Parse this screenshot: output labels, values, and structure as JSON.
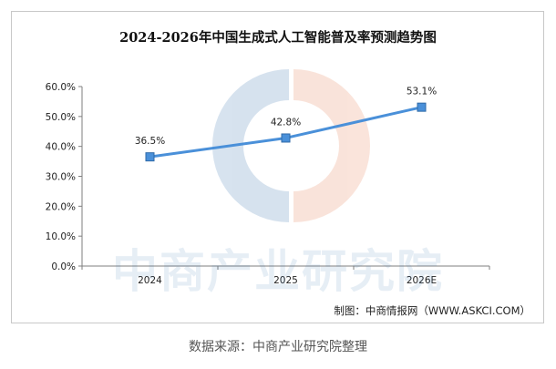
{
  "chart_data": {
    "type": "line",
    "title": "2024-2026年中国生成式人工智能普及率预测趋势图",
    "categories": [
      "2024",
      "2025",
      "2026E"
    ],
    "series": [
      {
        "values": [
          36.5,
          42.8,
          53.1
        ],
        "labels": [
          "36.5%",
          "42.8%",
          "53.1%"
        ]
      }
    ],
    "y_ticks": [
      "0.0%",
      "10.0%",
      "20.0%",
      "30.0%",
      "40.0%",
      "50.0%",
      "60.0%"
    ],
    "ylim": [
      0,
      60
    ],
    "grid": false,
    "legend": "none",
    "colors": {
      "line": "#4a90d9",
      "marker": "#4a90d9",
      "marker_edge": "#2f6aa8"
    }
  },
  "credit": "制图：中商情报网（WWW.ASKCI.COM）",
  "source": "数据来源：中商产业研究院整理",
  "watermark": {
    "text": "中商产业研究院",
    "colors": {
      "blue": "#4a7fb5",
      "orange": "#e8845a"
    }
  }
}
